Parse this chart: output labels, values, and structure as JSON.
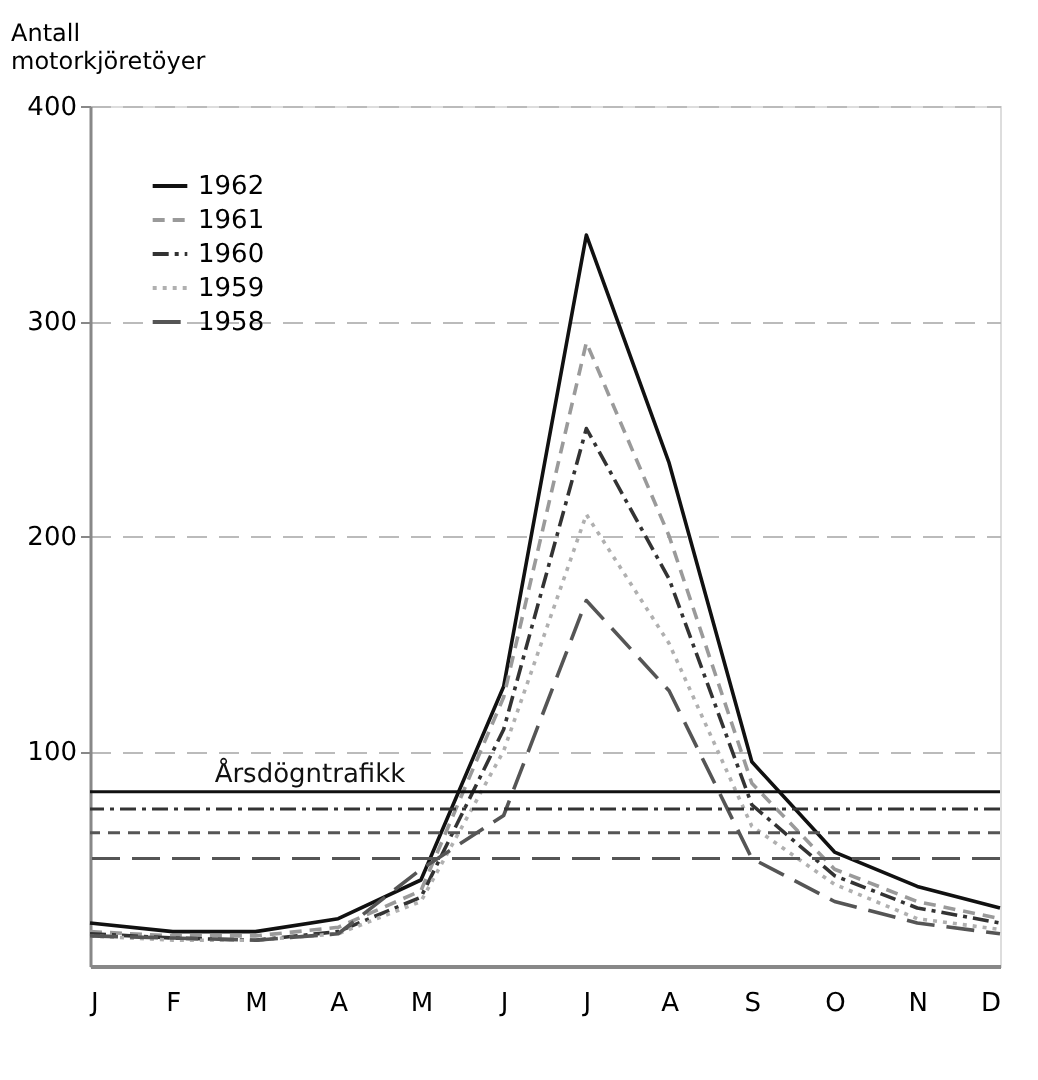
{
  "chart_data": {
    "type": "line",
    "ylabel": "Antall\nmotorkjöretöyer",
    "categories": [
      "J",
      "F",
      "M",
      "A",
      "M",
      "J",
      "J",
      "A",
      "S",
      "O",
      "N",
      "D"
    ],
    "series": [
      {
        "name": "1962",
        "color": "#111111",
        "line_style": "solid",
        "values": [
          20,
          16,
          16,
          22,
          40,
          130,
          340,
          234,
          95,
          53,
          37,
          27
        ]
      },
      {
        "name": "1961",
        "color": "#9a9a9a",
        "line_style": "dashed",
        "values": [
          16,
          14,
          14,
          18,
          35,
          125,
          290,
          200,
          85,
          45,
          30,
          22
        ]
      },
      {
        "name": "1960",
        "color": "#333333",
        "line_style": "dashdot",
        "values": [
          15,
          13,
          12,
          16,
          32,
          110,
          250,
          180,
          75,
          42,
          27,
          20
        ]
      },
      {
        "name": "1959",
        "color": "#b0b0b0",
        "line_style": "dotted",
        "values": [
          14,
          12,
          12,
          15,
          30,
          100,
          210,
          150,
          65,
          38,
          22,
          17
        ]
      },
      {
        "name": "1958",
        "color": "#555555",
        "line_style": "longdash",
        "values": [
          14,
          13,
          12,
          15,
          45,
          70,
          170,
          128,
          50,
          30,
          20,
          15
        ]
      }
    ],
    "ylim": [
      0,
      400
    ],
    "yticks": [
      100,
      200,
      300,
      400
    ],
    "grid": "y",
    "legend": "top left",
    "ref_lines": [
      {
        "axis": "y",
        "value": 81,
        "label": "Årsdögntrafikk",
        "color": "#111111",
        "line_style": "solid"
      },
      {
        "axis": "y",
        "value": 73,
        "label": null,
        "color": "#333333",
        "line_style": "dashdot"
      },
      {
        "axis": "y",
        "value": 62,
        "label": null,
        "color": "#555555",
        "line_style": "dashed"
      },
      {
        "axis": "y",
        "value": 50,
        "label": null,
        "color": "#555555",
        "line_style": "longdash"
      }
    ]
  }
}
